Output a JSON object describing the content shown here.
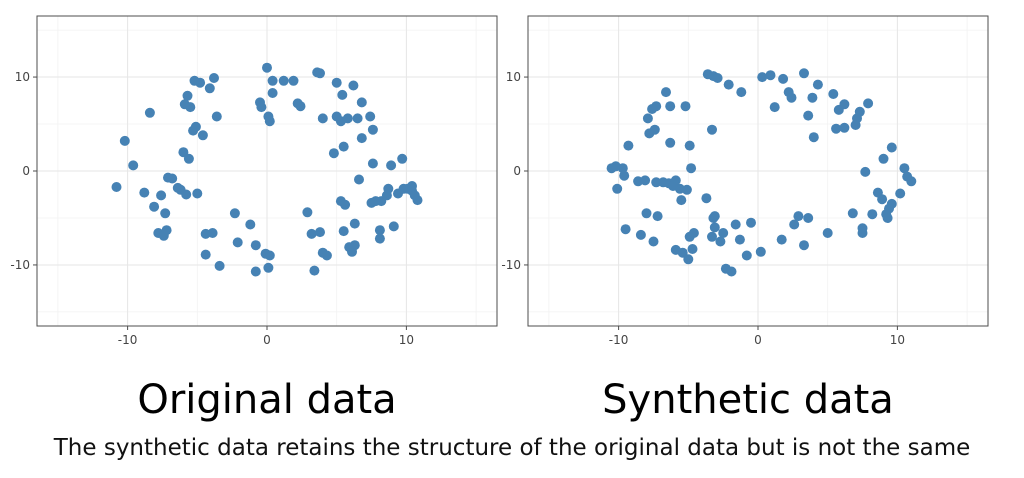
{
  "chart_data": [
    {
      "type": "scatter",
      "title": "Original data",
      "xlim": [
        -16.5,
        16.5
      ],
      "ylim": [
        -16.5,
        16.5
      ],
      "xticks": [
        -10,
        0,
        10
      ],
      "yticks": [
        -10,
        0,
        10
      ],
      "xtick_labels": [
        "-10",
        "0",
        "10"
      ],
      "ytick_labels": [
        "-10",
        "0",
        "10"
      ],
      "grid": true,
      "point_color": "#4682B4",
      "points": [
        [
          -10.8,
          -1.7
        ],
        [
          -10.2,
          3.2
        ],
        [
          -9.6,
          0.6
        ],
        [
          -8.8,
          -2.3
        ],
        [
          -8.4,
          6.2
        ],
        [
          -8.1,
          -3.8
        ],
        [
          -7.8,
          -6.6
        ],
        [
          -7.6,
          -2.6
        ],
        [
          -7.4,
          -6.9
        ],
        [
          -7.3,
          -4.5
        ],
        [
          -7.2,
          -6.3
        ],
        [
          -7.1,
          -0.7
        ],
        [
          -6.8,
          -0.8
        ],
        [
          -6.4,
          -1.8
        ],
        [
          -6.2,
          -2.0
        ],
        [
          -6.0,
          2.0
        ],
        [
          -5.9,
          7.1
        ],
        [
          -5.8,
          -2.5
        ],
        [
          -5.7,
          8.0
        ],
        [
          -5.6,
          1.3
        ],
        [
          -5.5,
          6.8
        ],
        [
          -5.3,
          4.3
        ],
        [
          -5.2,
          9.6
        ],
        [
          -5.1,
          4.7
        ],
        [
          -5.0,
          -2.4
        ],
        [
          -4.8,
          9.4
        ],
        [
          -4.6,
          3.8
        ],
        [
          -4.4,
          -6.7
        ],
        [
          -4.4,
          -8.9
        ],
        [
          -4.1,
          8.8
        ],
        [
          -3.9,
          -6.6
        ],
        [
          -3.8,
          9.9
        ],
        [
          -3.6,
          5.8
        ],
        [
          -3.4,
          -10.1
        ],
        [
          -2.3,
          -4.5
        ],
        [
          -2.1,
          -7.6
        ],
        [
          -1.2,
          -5.7
        ],
        [
          -0.8,
          -7.9
        ],
        [
          -0.8,
          -10.7
        ],
        [
          -0.5,
          7.3
        ],
        [
          -0.4,
          6.8
        ],
        [
          -0.1,
          -8.8
        ],
        [
          0.0,
          11.0
        ],
        [
          0.1,
          5.8
        ],
        [
          0.2,
          5.3
        ],
        [
          0.1,
          -10.3
        ],
        [
          0.2,
          -9.0
        ],
        [
          0.4,
          9.6
        ],
        [
          0.4,
          8.3
        ],
        [
          1.2,
          9.6
        ],
        [
          1.9,
          9.6
        ],
        [
          2.2,
          7.2
        ],
        [
          2.4,
          6.9
        ],
        [
          2.9,
          -4.4
        ],
        [
          3.2,
          -6.7
        ],
        [
          3.4,
          -10.6
        ],
        [
          3.6,
          10.5
        ],
        [
          3.8,
          10.4
        ],
        [
          3.8,
          -6.5
        ],
        [
          4.0,
          5.6
        ],
        [
          4.0,
          -8.7
        ],
        [
          4.3,
          -9.0
        ],
        [
          4.8,
          1.9
        ],
        [
          5.0,
          9.4
        ],
        [
          5.0,
          5.8
        ],
        [
          5.3,
          -3.2
        ],
        [
          5.3,
          5.3
        ],
        [
          5.4,
          8.1
        ],
        [
          5.5,
          2.6
        ],
        [
          5.5,
          -6.4
        ],
        [
          5.6,
          -3.6
        ],
        [
          5.8,
          5.6
        ],
        [
          5.9,
          -8.1
        ],
        [
          6.1,
          -8.6
        ],
        [
          6.2,
          9.1
        ],
        [
          6.3,
          -7.9
        ],
        [
          6.3,
          -5.6
        ],
        [
          6.5,
          5.6
        ],
        [
          6.6,
          -0.9
        ],
        [
          6.8,
          7.3
        ],
        [
          6.8,
          3.5
        ],
        [
          7.4,
          5.8
        ],
        [
          7.5,
          -3.4
        ],
        [
          7.6,
          4.4
        ],
        [
          7.6,
          0.8
        ],
        [
          7.8,
          -3.2
        ],
        [
          8.1,
          -7.2
        ],
        [
          8.1,
          -6.3
        ],
        [
          8.2,
          -3.2
        ],
        [
          8.6,
          -2.6
        ],
        [
          8.7,
          -1.9
        ],
        [
          8.9,
          0.6
        ],
        [
          9.1,
          -5.9
        ],
        [
          9.4,
          -2.4
        ],
        [
          9.7,
          1.3
        ],
        [
          9.8,
          -1.9
        ],
        [
          10.1,
          -1.9
        ],
        [
          10.4,
          -2.1
        ],
        [
          10.4,
          -1.6
        ],
        [
          10.6,
          -2.6
        ],
        [
          10.8,
          -3.1
        ]
      ]
    },
    {
      "type": "scatter",
      "title": "Synthetic data",
      "xlim": [
        -16.5,
        16.5
      ],
      "ylim": [
        -16.5,
        16.5
      ],
      "xticks": [
        -10,
        0,
        10
      ],
      "yticks": [
        -10,
        0,
        10
      ],
      "xtick_labels": [
        "-10",
        "0",
        "10"
      ],
      "ytick_labels": [
        "-10",
        "0",
        "10"
      ],
      "grid": true,
      "point_color": "#4682B4",
      "points": [
        [
          -10.5,
          0.3
        ],
        [
          -10.2,
          0.5
        ],
        [
          -10.1,
          -1.9
        ],
        [
          -9.7,
          0.3
        ],
        [
          -9.6,
          -0.5
        ],
        [
          -9.5,
          -6.2
        ],
        [
          -9.3,
          2.7
        ],
        [
          -8.6,
          -1.1
        ],
        [
          -8.4,
          -6.8
        ],
        [
          -8.1,
          -1.0
        ],
        [
          -8.0,
          -4.5
        ],
        [
          -7.8,
          4.0
        ],
        [
          -7.9,
          5.6
        ],
        [
          -7.6,
          6.6
        ],
        [
          -7.5,
          -7.5
        ],
        [
          -7.4,
          4.4
        ],
        [
          -7.3,
          6.9
        ],
        [
          -7.3,
          -1.2
        ],
        [
          -7.2,
          -4.8
        ],
        [
          -6.8,
          -1.2
        ],
        [
          -6.6,
          8.4
        ],
        [
          -6.4,
          -1.3
        ],
        [
          -6.3,
          3.0
        ],
        [
          -6.3,
          6.9
        ],
        [
          -6.1,
          -1.6
        ],
        [
          -5.9,
          -8.4
        ],
        [
          -5.9,
          -1.0
        ],
        [
          -5.6,
          -1.9
        ],
        [
          -5.5,
          -3.1
        ],
        [
          -5.4,
          -8.7
        ],
        [
          -5.2,
          6.9
        ],
        [
          -5.1,
          -2.0
        ],
        [
          -5.0,
          -9.4
        ],
        [
          -4.9,
          -7.0
        ],
        [
          -4.9,
          2.7
        ],
        [
          -4.8,
          0.3
        ],
        [
          -4.7,
          -8.3
        ],
        [
          -4.6,
          -6.6
        ],
        [
          -3.7,
          -2.9
        ],
        [
          -3.6,
          10.3
        ],
        [
          -3.3,
          4.4
        ],
        [
          -3.3,
          -7.0
        ],
        [
          -3.2,
          10.1
        ],
        [
          -3.2,
          -5.0
        ],
        [
          -3.1,
          -4.8
        ],
        [
          -3.1,
          -6.0
        ],
        [
          -2.9,
          9.9
        ],
        [
          -2.7,
          -7.5
        ],
        [
          -2.5,
          -6.6
        ],
        [
          -2.3,
          -10.4
        ],
        [
          -2.1,
          9.2
        ],
        [
          -1.9,
          -10.7
        ],
        [
          -1.6,
          -5.7
        ],
        [
          -1.3,
          -7.3
        ],
        [
          -1.2,
          8.4
        ],
        [
          -0.8,
          -9.0
        ],
        [
          -0.5,
          -5.5
        ],
        [
          0.3,
          10.0
        ],
        [
          0.2,
          -8.6
        ],
        [
          0.9,
          10.2
        ],
        [
          1.2,
          6.8
        ],
        [
          1.7,
          -7.3
        ],
        [
          1.8,
          9.8
        ],
        [
          2.2,
          8.4
        ],
        [
          2.4,
          7.8
        ],
        [
          2.6,
          -5.7
        ],
        [
          2.9,
          -4.8
        ],
        [
          3.3,
          -7.9
        ],
        [
          3.3,
          10.4
        ],
        [
          3.6,
          -5.0
        ],
        [
          3.6,
          5.9
        ],
        [
          3.9,
          7.8
        ],
        [
          4.0,
          3.6
        ],
        [
          4.3,
          9.2
        ],
        [
          5.0,
          -6.6
        ],
        [
          5.4,
          8.2
        ],
        [
          5.6,
          4.5
        ],
        [
          5.8,
          6.5
        ],
        [
          6.2,
          4.6
        ],
        [
          6.2,
          7.1
        ],
        [
          6.8,
          -4.5
        ],
        [
          7.0,
          4.9
        ],
        [
          7.1,
          5.6
        ],
        [
          7.3,
          6.3
        ],
        [
          7.5,
          -6.6
        ],
        [
          7.5,
          -6.1
        ],
        [
          7.7,
          -0.1
        ],
        [
          7.9,
          7.2
        ],
        [
          8.2,
          -4.6
        ],
        [
          8.6,
          -2.3
        ],
        [
          8.9,
          -3.0
        ],
        [
          9.0,
          1.3
        ],
        [
          9.2,
          -4.6
        ],
        [
          9.3,
          -5.0
        ],
        [
          9.4,
          -4.0
        ],
        [
          9.6,
          -3.5
        ],
        [
          9.6,
          2.5
        ],
        [
          10.2,
          -2.4
        ],
        [
          10.5,
          0.3
        ],
        [
          10.7,
          -0.6
        ],
        [
          11.0,
          -1.1
        ]
      ]
    }
  ],
  "caption": "The synthetic data retains the structure of the original data but is not the same"
}
